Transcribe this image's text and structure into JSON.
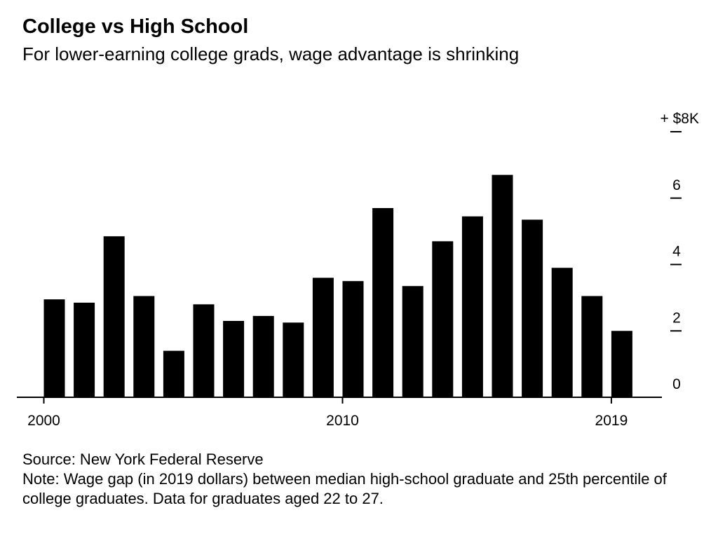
{
  "header": {
    "title": "College vs High School",
    "subtitle": "For lower-earning college grads, wage advantage is shrinking"
  },
  "footer": {
    "source": "Source: New York Federal Reserve",
    "note": "Note: Wage gap (in 2019 dollars) between median high-school graduate and 25th percentile of college graduates. Data for graduates aged 22 to 27."
  },
  "chart_data": {
    "type": "bar",
    "title": "College vs High School",
    "subtitle": "For lower-earning college grads, wage advantage is shrinking",
    "xlabel": "",
    "ylabel": "",
    "categories": [
      "2000",
      "2001",
      "2002",
      "2003",
      "2004",
      "2005",
      "2006",
      "2007",
      "2008",
      "2009",
      "2010",
      "2011",
      "2012",
      "2013",
      "2014",
      "2015",
      "2016",
      "2017",
      "2018",
      "2019"
    ],
    "values": [
      2.95,
      2.85,
      4.85,
      3.05,
      1.4,
      2.8,
      2.3,
      2.45,
      2.25,
      3.6,
      3.5,
      5.7,
      3.35,
      4.7,
      5.45,
      6.7,
      5.35,
      3.9,
      3.05,
      2.0
    ],
    "ylim": [
      0,
      8
    ],
    "yticks": [
      0,
      2,
      4,
      6,
      8
    ],
    "ytick_labels": [
      "0",
      "2",
      "4",
      "6",
      "+ $8K"
    ],
    "xtick_labels": [
      "2000",
      "2010",
      "2019"
    ],
    "grid": false,
    "colors": {
      "bar": "#000000",
      "axis": "#000000"
    }
  }
}
